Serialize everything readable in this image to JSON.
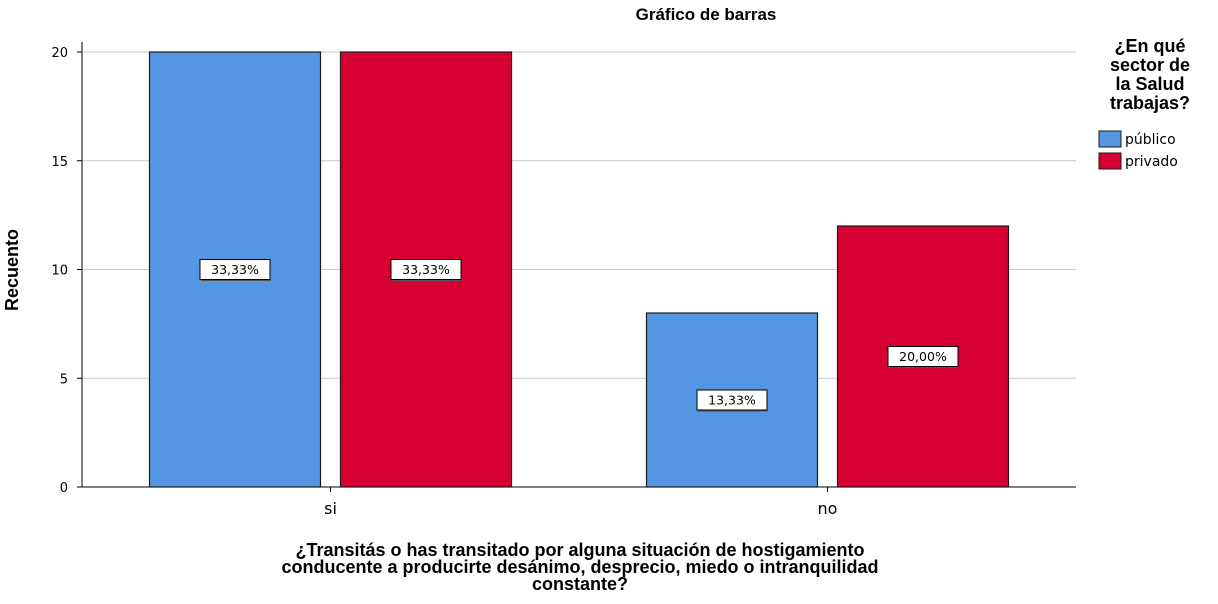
{
  "chart_data": {
    "type": "bar",
    "title": "Gráfico de barras",
    "xlabel": [
      "¿Transitás o has transitado por alguna situación de hostigamiento",
      "conducente a producirte desánimo, desprecio, miedo o intranquilidad",
      "constante?"
    ],
    "ylabel": "Recuento",
    "categories": [
      "si",
      "no"
    ],
    "ylim": [
      0,
      20
    ],
    "yticks": [
      0,
      5,
      10,
      15,
      20
    ],
    "grid": true,
    "legend": {
      "title": [
        "¿En qué",
        "sector de",
        "la Salud",
        "trabajas?"
      ],
      "placement": "right"
    },
    "series": [
      {
        "name": "público",
        "color": "#5596e3",
        "values": [
          20,
          8
        ],
        "labels": [
          "33,33%",
          "13,33%"
        ]
      },
      {
        "name": "privado",
        "color": "#d70032",
        "values": [
          20,
          12
        ],
        "labels": [
          "33,33%",
          "20,00%"
        ]
      }
    ]
  }
}
